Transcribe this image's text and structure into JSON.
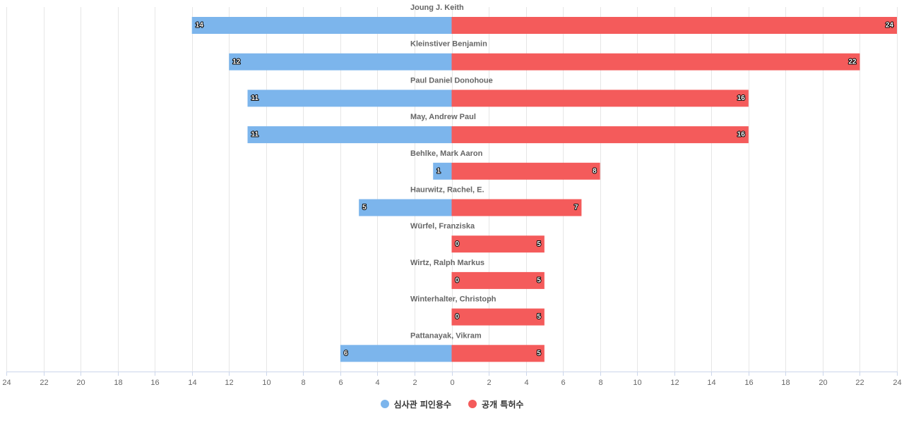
{
  "chart_data": {
    "type": "bar",
    "orientation": "horizontal-diverging",
    "categories": [
      "Joung J. Keith",
      "Kleinstiver Benjamin",
      "Paul Daniel Donohoue",
      "May, Andrew Paul",
      "Behlke, Mark Aaron",
      "Haurwitz, Rachel, E.",
      "Würfel, Franziska",
      "Wirtz, Ralph Markus",
      "Winterhalter, Christoph",
      "Pattanayak, Vikram"
    ],
    "series": [
      {
        "name": "심사관 피인용수",
        "color": "#7cb5ec",
        "values": [
          14,
          12,
          11,
          11,
          1,
          5,
          0,
          0,
          0,
          6
        ]
      },
      {
        "name": "공개 특허수",
        "color": "#f45b5b",
        "values": [
          24,
          22,
          16,
          16,
          8,
          7,
          5,
          5,
          5,
          5
        ]
      }
    ],
    "xlim": [
      -24,
      24
    ],
    "x_ticks": [
      "24",
      "22",
      "20",
      "18",
      "16",
      "14",
      "12",
      "10",
      "8",
      "6",
      "4",
      "2",
      "0",
      "2",
      "4",
      "6",
      "8",
      "10",
      "12",
      "14",
      "16",
      "18",
      "20",
      "22",
      "24"
    ],
    "grid": true,
    "legend_position": "bottom-center"
  }
}
